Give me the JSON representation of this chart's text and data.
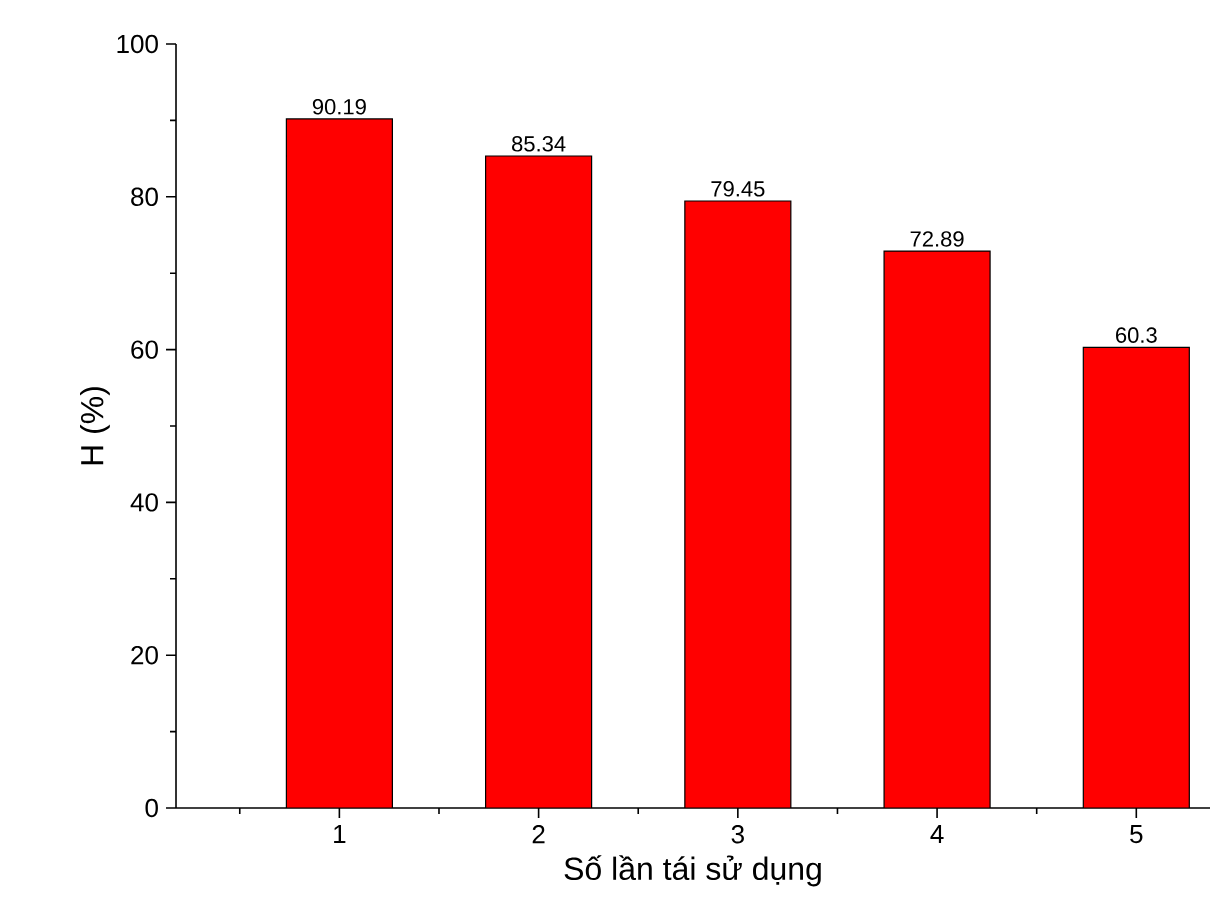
{
  "chart_data": {
    "type": "bar",
    "xlabel": "Số lần tái sử dụng",
    "ylabel": "H (%)",
    "categories": [
      "1",
      "2",
      "3",
      "4",
      "5"
    ],
    "values": [
      90.19,
      85.34,
      79.45,
      72.89,
      60.3
    ],
    "color": "#ff0000",
    "ylim": [
      0,
      100
    ],
    "yticks": [
      0,
      20,
      40,
      60,
      80,
      100
    ],
    "data_labels": true,
    "grid": false
  }
}
